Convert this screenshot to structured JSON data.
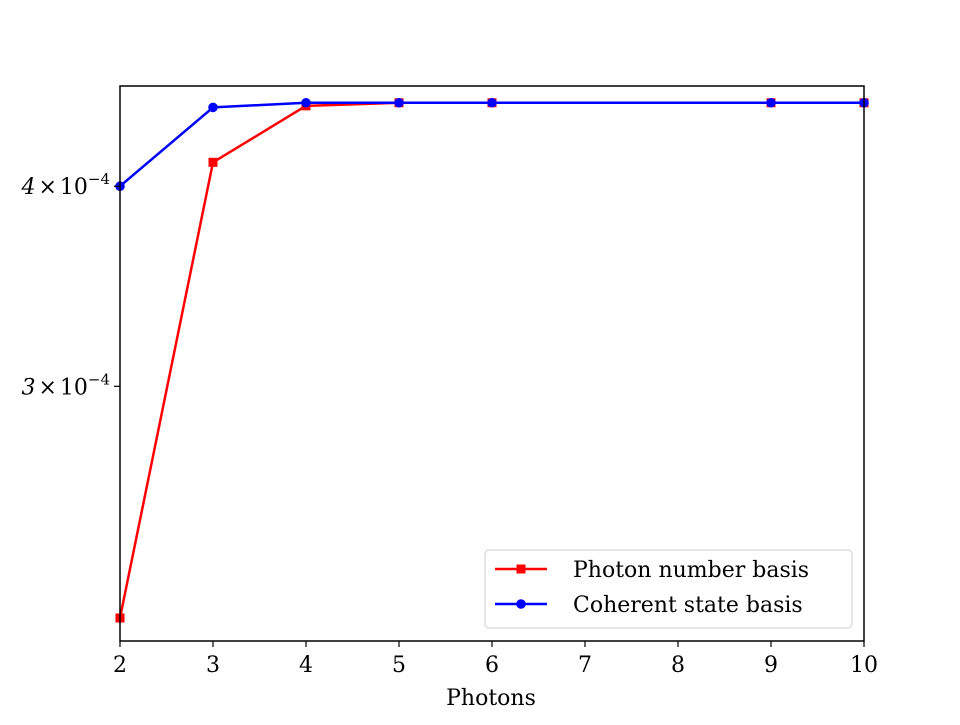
{
  "chart_data": {
    "type": "line",
    "title": "",
    "xlabel": "Photons",
    "ylabel": "",
    "xlim": [
      2,
      10
    ],
    "ylim": [
      0.000208,
      0.000462
    ],
    "y_scale": "log",
    "grid": false,
    "legend_position": "lower-right",
    "x_ticks": [
      2,
      3,
      4,
      5,
      6,
      7,
      8,
      9,
      10
    ],
    "x_tick_labels": [
      "2",
      "3",
      "4",
      "5",
      "6",
      "7",
      "8",
      "9",
      "10"
    ],
    "y_ticks": [
      0.0003,
      0.0004
    ],
    "y_tick_labels": [
      {
        "mantissa": "3",
        "times": "×",
        "base": "10",
        "exponent": "−4"
      },
      {
        "mantissa": "4",
        "times": "×",
        "base": "10",
        "exponent": "−4"
      }
    ],
    "series": [
      {
        "name": "Photon number basis",
        "color": "#ff0000",
        "marker": "square",
        "x": [
          2,
          3,
          4,
          5,
          6,
          9,
          10
        ],
        "y": [
          0.000215,
          0.000414,
          0.000449,
          0.000451,
          0.000451,
          0.000451,
          0.000451
        ]
      },
      {
        "name": "Coherent state basis",
        "color": "#0000ff",
        "marker": "circle",
        "x": [
          2,
          3,
          4,
          5,
          6,
          9,
          10
        ],
        "y": [
          0.0004,
          0.000448,
          0.000451,
          0.000451,
          0.000451,
          0.000451,
          0.000451
        ]
      }
    ]
  }
}
